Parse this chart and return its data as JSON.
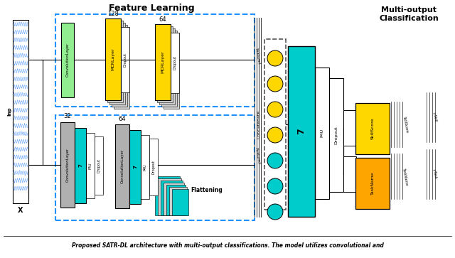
{
  "title": "Feature Learning",
  "title2": "Multi-output\nClassification",
  "caption": "Proposed SATR-DL architecture with multi-output classifications. The model utilizes convolutional and",
  "bg_color": "#ffffff",
  "green_color": "#90EE90",
  "yellow_color": "#FFD700",
  "cyan_color": "#00CCCC",
  "gray_color": "#B0B0B0",
  "orange_color": "#FFA500",
  "white_color": "#ffffff",
  "dashed_box_color": "#1E90FF",
  "label_128": "128",
  "label_64_top": "64",
  "label_32": "32",
  "label_64_bot": "64",
  "x_label": "X",
  "flatten_label": "Flattening",
  "concat_label": "Concatenate",
  "fc_label": "7",
  "p4u_label": "P4U",
  "dropout_label": "Dropout",
  "node_colors_top": [
    "#FFD700",
    "#FFD700",
    "#FFD700",
    "#FFD700"
  ],
  "node_colors_bot": [
    "#00CCCC",
    "#00CCCC",
    "#00CCCC"
  ],
  "output1_color": "#FFD700",
  "output2_color": "#FFA500",
  "line_color": "#111111",
  "shadow_color": "#D0D0D0"
}
